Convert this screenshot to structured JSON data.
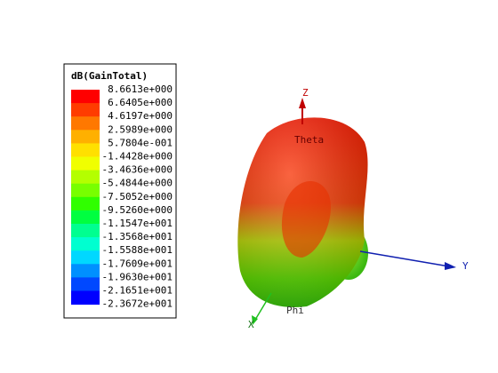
{
  "legend": {
    "title": "dB(GainTotal)",
    "labels": [
      "8.6613e+000",
      "6.6405e+000",
      "4.6197e+000",
      "2.5989e+000",
      "5.7804e-001",
      "-1.4428e+000",
      "-3.4636e+000",
      "-5.4844e+000",
      "-7.5052e+000",
      "-9.5260e+000",
      "-1.1547e+001",
      "-1.3568e+001",
      "-1.5588e+001",
      "-1.7609e+001",
      "-1.9630e+001",
      "-2.1651e+001",
      "-2.3672e+001"
    ],
    "colors": [
      "#ff0000",
      "#ff3c00",
      "#ff7800",
      "#ffb000",
      "#ffe000",
      "#f0ff00",
      "#b4ff00",
      "#78ff00",
      "#30ff00",
      "#00ff40",
      "#00ff90",
      "#00ffd0",
      "#00d8ff",
      "#0090ff",
      "#0048ff",
      "#0000ff"
    ]
  },
  "axes": {
    "z": "Z",
    "theta": "Theta",
    "y": "Y",
    "phi": "Phi",
    "x": "X"
  }
}
